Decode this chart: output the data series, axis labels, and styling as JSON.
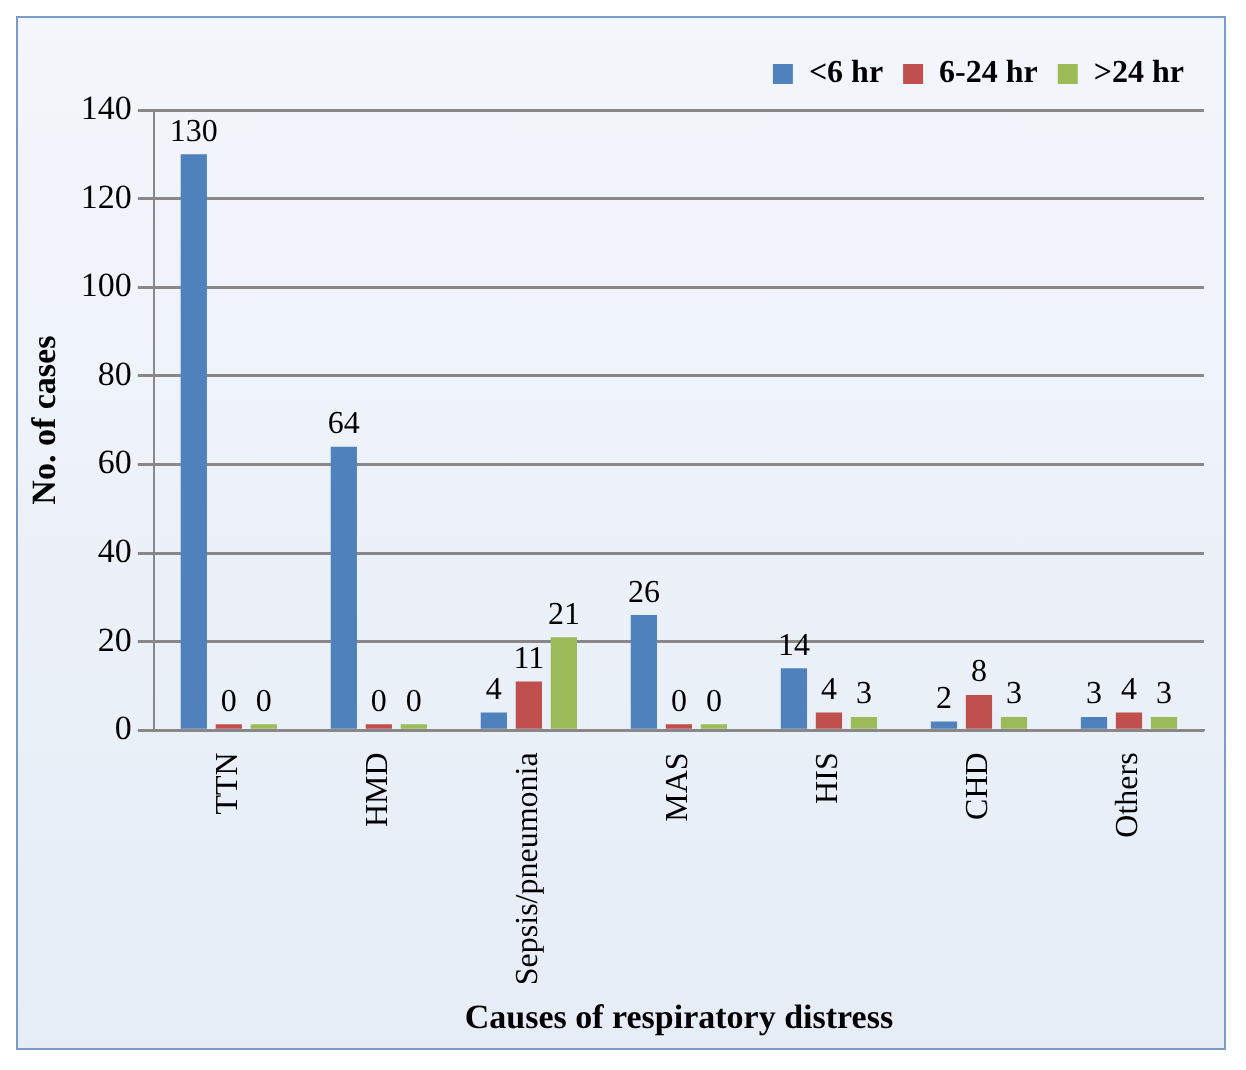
{
  "chart_data": {
    "type": "bar",
    "xlabel": "Causes of respiratory distress",
    "ylabel": "No. of cases",
    "categories": [
      "TTN",
      "HMD",
      "Sepsis/pneumonia",
      "MAS",
      "HIS",
      "CHD",
      "Others"
    ],
    "series": [
      {
        "name": "<6 hr",
        "color": "#4f81bd",
        "values": [
          130,
          64,
          4,
          26,
          14,
          2,
          3
        ]
      },
      {
        "name": "6-24 hr",
        "color": "#c0504d",
        "values": [
          0,
          0,
          11,
          0,
          4,
          8,
          4
        ]
      },
      {
        "name": ">24 hr",
        "color": "#9bbb59",
        "values": [
          0,
          0,
          21,
          0,
          3,
          3,
          3
        ]
      }
    ],
    "ylim": [
      0,
      140
    ],
    "yticks": [
      0,
      20,
      40,
      60,
      80,
      100,
      120,
      140
    ],
    "grid": "y",
    "legend": "top right",
    "data_labels": true
  }
}
